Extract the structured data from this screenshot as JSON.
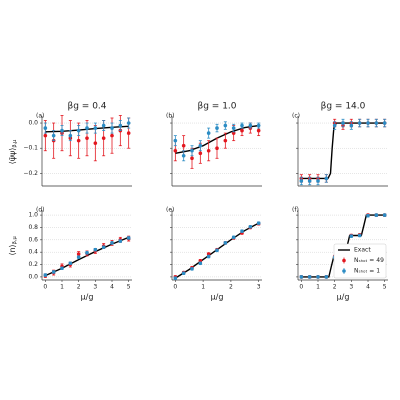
{
  "chart_data": [
    {
      "type": "line",
      "title": "βg = 0.4",
      "panel_label": "(a)",
      "ylabel": {
        "text": "⟨ψ̄ψ⟩",
        "sub": "β,μ"
      },
      "xlim": [
        -0.2,
        5.2
      ],
      "ylim": [
        -0.25,
        0.02
      ],
      "yticks": [
        {
          "value": 0,
          "label": "0.0"
        },
        {
          "value": -0.1,
          "label": "−0.1"
        },
        {
          "value": -0.2,
          "label": "−0.2"
        }
      ],
      "grid": true,
      "x": [
        0,
        0.5,
        1,
        1.5,
        2,
        2.5,
        3,
        3.5,
        4,
        4.5,
        5
      ],
      "series": [
        {
          "color": "#000000",
          "x": [
            0,
            1,
            2,
            3,
            4,
            5
          ],
          "values": [
            -0.035,
            -0.033,
            -0.028,
            -0.022,
            -0.017,
            -0.013
          ]
        },
        {
          "color": "#e3171f",
          "values": [
            -0.05,
            -0.07,
            -0.04,
            -0.06,
            -0.07,
            -0.06,
            -0.08,
            -0.06,
            -0.05,
            -0.03,
            -0.04
          ],
          "errors": [
            0.06,
            0.07,
            0.07,
            0.07,
            0.07,
            0.07,
            0.07,
            0.07,
            0.07,
            0.06,
            0.06
          ]
        },
        {
          "color": "#2b8cc4",
          "values": [
            -0.02,
            -0.05,
            -0.03,
            -0.05,
            -0.03,
            -0.02,
            -0.02,
            -0.01,
            -0.02,
            -0.01,
            0.0
          ],
          "errors": [
            0.02,
            0.02,
            0.02,
            0.02,
            0.02,
            0.02,
            0.02,
            0.02,
            0.02,
            0.02,
            0.02
          ]
        }
      ]
    },
    {
      "type": "line",
      "title": "βg = 1.0",
      "panel_label": "(b)",
      "xlim": [
        -0.12,
        3.12
      ],
      "ylim": [
        -0.25,
        0.02
      ],
      "yticks": [
        0,
        -0.1,
        -0.2
      ],
      "grid": true,
      "x": [
        0,
        0.3,
        0.6,
        0.9,
        1.2,
        1.5,
        1.8,
        2.1,
        2.4,
        2.7,
        3
      ],
      "series": [
        {
          "color": "#000000",
          "x": [
            0,
            0.5,
            1,
            1.5,
            2,
            2.5,
            3
          ],
          "values": [
            -0.12,
            -0.11,
            -0.09,
            -0.06,
            -0.035,
            -0.018,
            -0.01
          ]
        },
        {
          "color": "#e3171f",
          "values": [
            -0.11,
            -0.09,
            -0.14,
            -0.12,
            -0.11,
            -0.1,
            -0.07,
            -0.04,
            -0.03,
            -0.02,
            -0.03
          ],
          "errors": [
            0.04,
            0.04,
            0.04,
            0.04,
            0.04,
            0.04,
            0.03,
            0.03,
            0.02,
            0.02,
            0.02
          ]
        },
        {
          "color": "#2b8cc4",
          "values": [
            -0.07,
            -0.13,
            -0.11,
            -0.09,
            -0.04,
            -0.02,
            -0.01,
            -0.02,
            -0.01,
            -0.01,
            -0.01
          ],
          "errors": [
            0.02,
            0.02,
            0.02,
            0.02,
            0.02,
            0.015,
            0.015,
            0.015,
            0.01,
            0.01,
            0.01
          ]
        }
      ]
    },
    {
      "type": "line",
      "title": "βg = 14.0",
      "panel_label": "(c)",
      "xlim": [
        -0.2,
        5.2
      ],
      "ylim": [
        -0.25,
        0.02
      ],
      "yticks": [
        0,
        -0.1,
        -0.2
      ],
      "grid": true,
      "x": [
        0,
        0.5,
        1,
        1.5,
        2,
        2.5,
        3,
        3.5,
        4,
        4.5,
        5
      ],
      "series": [
        {
          "color": "#000000",
          "x": [
            0,
            1.6,
            1.75,
            1.85,
            1.95,
            2.1,
            5
          ],
          "values": [
            -0.22,
            -0.22,
            -0.2,
            -0.1,
            -0.02,
            0,
            0
          ]
        },
        {
          "color": "#e3171f",
          "values": [
            -0.22,
            -0.22,
            -0.22,
            -0.22,
            0.0,
            -0.01,
            0.0,
            0.0,
            0.0,
            0.0,
            0.0
          ],
          "errors": [
            0.015,
            0.015,
            0.015,
            0.015,
            0.015,
            0.015,
            0.015,
            0.015,
            0.015,
            0.015,
            0.015
          ]
        },
        {
          "color": "#2b8cc4",
          "values": [
            -0.23,
            -0.23,
            -0.23,
            -0.22,
            -0.01,
            0.0,
            -0.01,
            0.0,
            0.0,
            0.0,
            0.0
          ],
          "errors": [
            0.015,
            0.015,
            0.015,
            0.015,
            0.015,
            0.015,
            0.015,
            0.015,
            0.015,
            0.015,
            0.015
          ]
        }
      ]
    },
    {
      "type": "line",
      "panel_label": "(d)",
      "xlabel": "μ/g",
      "ylabel": {
        "text": "⟨n⟩",
        "sub": "β,μ"
      },
      "xlim": [
        -0.2,
        5.2
      ],
      "ylim": [
        -0.05,
        1.05
      ],
      "xticks": [
        0,
        1,
        2,
        3,
        4,
        5
      ],
      "yticks": [
        {
          "value": 0,
          "label": "0.0"
        },
        {
          "value": 0.2,
          "label": "0.2"
        },
        {
          "value": 0.4,
          "label": "0.4"
        },
        {
          "value": 0.6,
          "label": "0.6"
        },
        {
          "value": 0.8,
          "label": "0.8"
        },
        {
          "value": 1,
          "label": "1.0"
        }
      ],
      "grid": true,
      "x": [
        0,
        0.5,
        1,
        1.5,
        2,
        2.5,
        3,
        3.5,
        4,
        4.5,
        5
      ],
      "series": [
        {
          "color": "#000000",
          "x": [
            0,
            1,
            2,
            3,
            4,
            5
          ],
          "values": [
            0.02,
            0.14,
            0.28,
            0.41,
            0.53,
            0.64
          ]
        },
        {
          "color": "#e3171f",
          "values": [
            0.02,
            0.07,
            0.17,
            0.2,
            0.37,
            0.38,
            0.42,
            0.5,
            0.55,
            0.6,
            0.62
          ],
          "errors": [
            0.03,
            0.04,
            0.04,
            0.04,
            0.04,
            0.04,
            0.04,
            0.04,
            0.04,
            0.04,
            0.04
          ]
        },
        {
          "color": "#2b8cc4",
          "values": [
            0.03,
            0.08,
            0.14,
            0.22,
            0.32,
            0.39,
            0.44,
            0.48,
            0.55,
            0.58,
            0.63
          ],
          "errors": [
            0.02,
            0.02,
            0.02,
            0.02,
            0.02,
            0.02,
            0.02,
            0.02,
            0.02,
            0.02,
            0.02
          ]
        }
      ]
    },
    {
      "type": "line",
      "panel_label": "(e)",
      "xlabel": "μ/g",
      "xlim": [
        -0.12,
        3.12
      ],
      "ylim": [
        -0.05,
        1.05
      ],
      "xticks": [
        0,
        1,
        2,
        3
      ],
      "yticks": [
        0,
        0.2,
        0.4,
        0.6,
        0.8,
        1
      ],
      "grid": true,
      "x": [
        0,
        0.3,
        0.6,
        0.9,
        1.2,
        1.5,
        1.8,
        2.1,
        2.4,
        2.7,
        3
      ],
      "series": [
        {
          "color": "#000000",
          "x": [
            0,
            0.5,
            1,
            1.5,
            2,
            2.5,
            3
          ],
          "values": [
            -0.02,
            0.12,
            0.28,
            0.44,
            0.6,
            0.75,
            0.87
          ]
        },
        {
          "color": "#e3171f",
          "values": [
            0.0,
            0.07,
            0.15,
            0.26,
            0.37,
            0.44,
            0.55,
            0.63,
            0.71,
            0.8,
            0.86
          ],
          "errors": [
            0.02,
            0.02,
            0.02,
            0.02,
            0.02,
            0.02,
            0.02,
            0.02,
            0.02,
            0.02,
            0.02
          ]
        },
        {
          "color": "#2b8cc4",
          "values": [
            -0.02,
            0.06,
            0.13,
            0.22,
            0.33,
            0.43,
            0.55,
            0.64,
            0.74,
            0.81,
            0.87
          ],
          "errors": [
            0.02,
            0.02,
            0.02,
            0.02,
            0.02,
            0.02,
            0.02,
            0.02,
            0.02,
            0.02,
            0.02
          ]
        }
      ]
    },
    {
      "type": "line",
      "panel_label": "(f)",
      "xlabel": "μ/g",
      "legend": "lower right",
      "xlim": [
        -0.2,
        5.2
      ],
      "ylim": [
        -0.05,
        1.05
      ],
      "xticks": [
        0,
        1,
        2,
        3,
        4,
        5
      ],
      "yticks": [
        0,
        0.2,
        0.4,
        0.6,
        0.8,
        1
      ],
      "grid": true,
      "x": [
        0,
        0.5,
        1,
        1.5,
        2,
        2.5,
        3,
        3.5,
        4,
        4.5,
        5
      ],
      "series": [
        {
          "name": "Exact",
          "color": "#000000",
          "x": [
            0,
            1.65,
            1.8,
            1.95,
            2.6,
            2.75,
            2.9,
            3.6,
            3.75,
            3.9,
            5
          ],
          "values": [
            0,
            0,
            0.17,
            0.33,
            0.33,
            0.5,
            0.67,
            0.67,
            0.83,
            1,
            1
          ]
        },
        {
          "name": "Nₛₕₒₜ = 49",
          "color": "#e3171f",
          "values": [
            0,
            0,
            0,
            0,
            0.33,
            0.35,
            0.67,
            0.68,
            1.0,
            1.0,
            1.0
          ],
          "errors": [
            0.02,
            0.02,
            0.02,
            0.02,
            0.02,
            0.02,
            0.02,
            0.02,
            0.02,
            0.02,
            0.02
          ]
        },
        {
          "name": "Nₛₕₒₜ = 1",
          "color": "#2b8cc4",
          "values": [
            0,
            0,
            0,
            0,
            0.32,
            0.34,
            0.66,
            0.67,
            0.99,
            1.0,
            1.0
          ],
          "errors": [
            0.02,
            0.02,
            0.02,
            0.02,
            0.02,
            0.02,
            0.02,
            0.02,
            0.02,
            0.02,
            0.02
          ]
        }
      ]
    }
  ]
}
